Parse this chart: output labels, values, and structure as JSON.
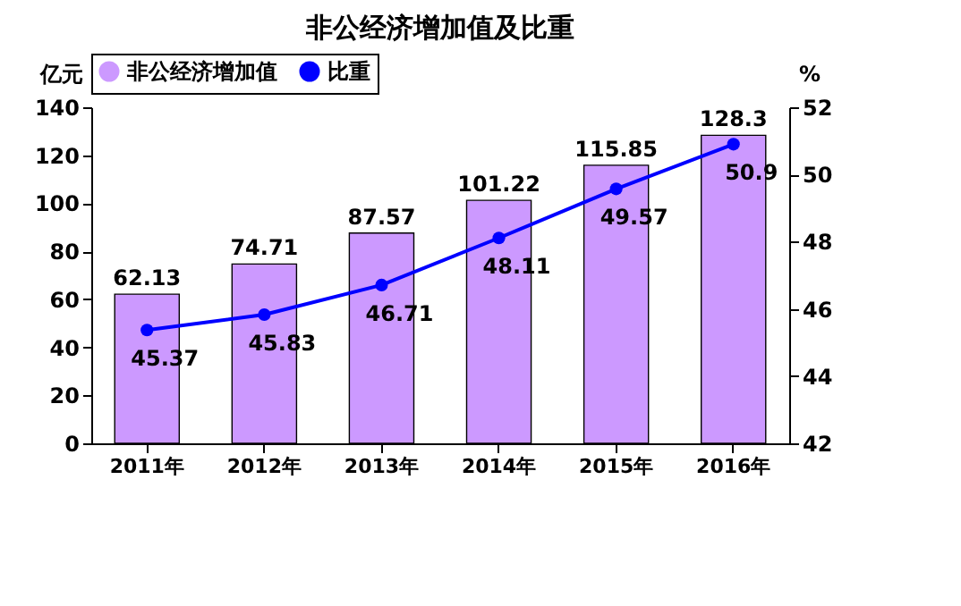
{
  "chart_data": {
    "type": "bar",
    "title": "非公经济增加值及比重",
    "ylabel": "亿元",
    "y2label": "%",
    "categories": [
      "2011年",
      "2012年",
      "2013年",
      "2014年",
      "2015年",
      "2016年"
    ],
    "series": [
      {
        "name": "非公经济增加值",
        "color": "#cc99ff",
        "values": [
          62.13,
          74.71,
          87.57,
          101.22,
          115.85,
          128.3
        ]
      },
      {
        "name": "比重",
        "type": "line",
        "axis": "y2",
        "color": "#0000ff",
        "values": [
          45.37,
          45.83,
          46.71,
          48.11,
          49.57,
          50.9
        ]
      }
    ],
    "ylim": [
      0,
      140
    ],
    "yticks": [
      0,
      20,
      40,
      60,
      80,
      100,
      120,
      140
    ],
    "y2lim": [
      42,
      52
    ],
    "y2ticks": [
      42,
      44,
      46,
      48,
      50,
      52
    ],
    "data_labels": true,
    "legend": "top",
    "marker": "circle",
    "grid": false
  }
}
